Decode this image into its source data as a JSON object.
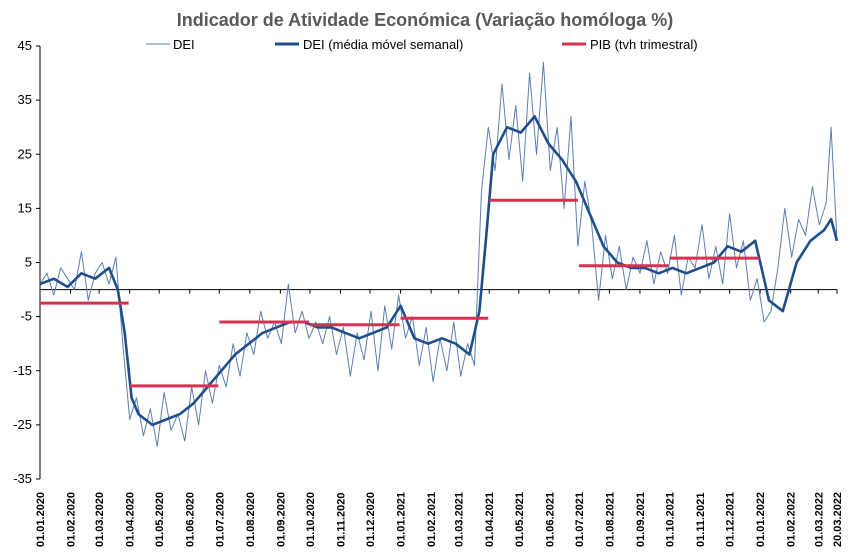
{
  "chart_data": {
    "type": "line",
    "title": "Indicador de Atividade Económica (Variação homóloga %)",
    "xlabel": "",
    "ylabel": "",
    "ylim": [
      -35,
      45
    ],
    "y_ticks": [
      45,
      35,
      25,
      15,
      5,
      -5,
      -15,
      -25,
      -35
    ],
    "x_range": [
      "2020-01-01",
      "2022-03-20"
    ],
    "x_tick_dates": [
      "2020-01-01",
      "2020-02-01",
      "2020-03-01",
      "2020-04-01",
      "2020-05-01",
      "2020-06-01",
      "2020-07-01",
      "2020-08-01",
      "2020-09-01",
      "2020-10-01",
      "2020-11-01",
      "2020-12-01",
      "2021-01-01",
      "2021-02-01",
      "2021-03-01",
      "2021-04-01",
      "2021-05-01",
      "2021-06-01",
      "2021-07-01",
      "2021-08-01",
      "2021-09-01",
      "2021-10-01",
      "2021-11-01",
      "2021-12-01",
      "2022-01-01",
      "2022-02-01",
      "2022-03-01",
      "2022-03-20"
    ],
    "x_tick_labels": [
      "01.01.2020",
      "01.02.2020",
      "01.03.2020",
      "01.04.2020",
      "01.05.2020",
      "01.06.2020",
      "01.07.2020",
      "01.08.2020",
      "01.09.2020",
      "01.10.2020",
      "01.11.2020",
      "01.12.2020",
      "01.01.2021",
      "01.02.2021",
      "01.03.2021",
      "01.04.2021",
      "01.05.2021",
      "01.06.2021",
      "01.07.2021",
      "01.08.2021",
      "01.09.2021",
      "01.10.2021",
      "01.11.2021",
      "01.12.2021",
      "01.01.2022",
      "01.02.2022",
      "01.03.2022",
      "20.03.2022"
    ],
    "legend_position": "top",
    "grid": false,
    "series": [
      {
        "name": "DEI",
        "style": "thin",
        "color": "#5b7fb0",
        "x": [
          "2020-01-01",
          "2020-01-08",
          "2020-01-15",
          "2020-01-22",
          "2020-01-29",
          "2020-02-05",
          "2020-02-12",
          "2020-02-19",
          "2020-02-26",
          "2020-03-04",
          "2020-03-11",
          "2020-03-18",
          "2020-03-25",
          "2020-04-01",
          "2020-04-08",
          "2020-04-15",
          "2020-04-22",
          "2020-04-29",
          "2020-05-06",
          "2020-05-13",
          "2020-05-20",
          "2020-05-27",
          "2020-06-03",
          "2020-06-10",
          "2020-06-17",
          "2020-06-24",
          "2020-07-01",
          "2020-07-08",
          "2020-07-15",
          "2020-07-22",
          "2020-07-29",
          "2020-08-05",
          "2020-08-12",
          "2020-08-19",
          "2020-08-26",
          "2020-09-02",
          "2020-09-09",
          "2020-09-16",
          "2020-09-23",
          "2020-09-30",
          "2020-10-07",
          "2020-10-14",
          "2020-10-21",
          "2020-10-28",
          "2020-11-04",
          "2020-11-11",
          "2020-11-18",
          "2020-11-25",
          "2020-12-02",
          "2020-12-09",
          "2020-12-16",
          "2020-12-23",
          "2020-12-30",
          "2021-01-06",
          "2021-01-13",
          "2021-01-20",
          "2021-01-27",
          "2021-02-03",
          "2021-02-10",
          "2021-02-17",
          "2021-02-24",
          "2021-03-03",
          "2021-03-10",
          "2021-03-17",
          "2021-03-24",
          "2021-03-31",
          "2021-04-07",
          "2021-04-14",
          "2021-04-21",
          "2021-04-28",
          "2021-05-05",
          "2021-05-12",
          "2021-05-19",
          "2021-05-26",
          "2021-06-02",
          "2021-06-09",
          "2021-06-16",
          "2021-06-23",
          "2021-06-30",
          "2021-07-07",
          "2021-07-14",
          "2021-07-21",
          "2021-07-28",
          "2021-08-04",
          "2021-08-11",
          "2021-08-18",
          "2021-08-25",
          "2021-09-01",
          "2021-09-08",
          "2021-09-15",
          "2021-09-22",
          "2021-09-29",
          "2021-10-06",
          "2021-10-13",
          "2021-10-20",
          "2021-10-27",
          "2021-11-03",
          "2021-11-10",
          "2021-11-17",
          "2021-11-24",
          "2021-12-01",
          "2021-12-08",
          "2021-12-15",
          "2021-12-22",
          "2021-12-29",
          "2022-01-05",
          "2022-01-12",
          "2022-01-19",
          "2022-01-26",
          "2022-02-02",
          "2022-02-09",
          "2022-02-16",
          "2022-02-23",
          "2022-03-02",
          "2022-03-09",
          "2022-03-14",
          "2022-03-20"
        ],
        "values": [
          1,
          3,
          -1,
          4,
          2,
          0,
          7,
          -2,
          3,
          5,
          1,
          6,
          -10,
          -24,
          -20,
          -27,
          -22,
          -29,
          -19,
          -26,
          -23,
          -28,
          -18,
          -25,
          -15,
          -21,
          -14,
          -18,
          -10,
          -16,
          -8,
          -12,
          -4,
          -9,
          -6,
          -10,
          1,
          -8,
          -4,
          -9,
          -6,
          -10,
          -5,
          -12,
          -7,
          -16,
          -8,
          -13,
          -4,
          -15,
          -3,
          -11,
          -1,
          -9,
          -5,
          -14,
          -7,
          -17,
          -9,
          -15,
          -6,
          -16,
          -10,
          -14,
          18,
          30,
          22,
          38,
          24,
          34,
          20,
          40,
          25,
          42,
          22,
          30,
          15,
          32,
          8,
          20,
          12,
          -2,
          10,
          2,
          8,
          0,
          6,
          3,
          9,
          1,
          7,
          3,
          10,
          -1,
          6,
          4,
          12,
          2,
          8,
          1,
          14,
          4,
          9,
          -2,
          2,
          -6,
          -4,
          4,
          15,
          6,
          13,
          10,
          19,
          12,
          16,
          30,
          9
        ]
      },
      {
        "name": "DEI (média móvel semanal)",
        "style": "thick",
        "color": "#1f4e89",
        "x": [
          "2020-01-01",
          "2020-01-15",
          "2020-01-29",
          "2020-02-12",
          "2020-02-26",
          "2020-03-11",
          "2020-03-20",
          "2020-03-27",
          "2020-04-03",
          "2020-04-10",
          "2020-04-24",
          "2020-05-08",
          "2020-05-22",
          "2020-06-05",
          "2020-06-19",
          "2020-07-03",
          "2020-07-17",
          "2020-07-31",
          "2020-08-14",
          "2020-08-28",
          "2020-09-11",
          "2020-09-25",
          "2020-10-09",
          "2020-10-23",
          "2020-11-06",
          "2020-11-20",
          "2020-12-04",
          "2020-12-18",
          "2021-01-01",
          "2021-01-15",
          "2021-01-29",
          "2021-02-12",
          "2021-02-26",
          "2021-03-12",
          "2021-03-22",
          "2021-03-29",
          "2021-04-05",
          "2021-04-19",
          "2021-05-03",
          "2021-05-17",
          "2021-05-31",
          "2021-06-14",
          "2021-06-28",
          "2021-07-12",
          "2021-07-26",
          "2021-08-09",
          "2021-08-23",
          "2021-09-06",
          "2021-09-20",
          "2021-10-04",
          "2021-10-18",
          "2021-11-01",
          "2021-11-15",
          "2021-11-29",
          "2021-12-13",
          "2021-12-27",
          "2022-01-10",
          "2022-01-24",
          "2022-02-07",
          "2022-02-21",
          "2022-03-07",
          "2022-03-14",
          "2022-03-20"
        ],
        "values": [
          1,
          2,
          0.5,
          3,
          2,
          4,
          0,
          -8,
          -20,
          -23,
          -25,
          -24,
          -23,
          -21,
          -18,
          -15,
          -12,
          -10,
          -8,
          -7,
          -6,
          -6,
          -7,
          -7,
          -8,
          -9,
          -8,
          -7,
          -3,
          -9,
          -10,
          -9,
          -10,
          -12,
          -4,
          10,
          25,
          30,
          29,
          32,
          27,
          24,
          20,
          14,
          8,
          5,
          4,
          4,
          3,
          4,
          3,
          4,
          5,
          8,
          7,
          9,
          -2,
          -4,
          5,
          9,
          11,
          13,
          9
        ]
      },
      {
        "name": "PIB (tvh trimestral)",
        "style": "step",
        "color": "#d9304f",
        "segments": [
          {
            "from": "2020-01-01",
            "to": "2020-03-31",
            "value": -2.5
          },
          {
            "from": "2020-04-01",
            "to": "2020-06-30",
            "value": -17.8
          },
          {
            "from": "2020-07-01",
            "to": "2020-09-30",
            "value": -6.0
          },
          {
            "from": "2020-10-01",
            "to": "2020-12-31",
            "value": -6.5
          },
          {
            "from": "2021-01-01",
            "to": "2021-03-31",
            "value": -5.3
          },
          {
            "from": "2021-04-01",
            "to": "2021-06-30",
            "value": 16.5
          },
          {
            "from": "2021-07-01",
            "to": "2021-09-30",
            "value": 4.4
          },
          {
            "from": "2021-10-01",
            "to": "2021-12-31",
            "value": 5.8
          }
        ]
      }
    ]
  }
}
